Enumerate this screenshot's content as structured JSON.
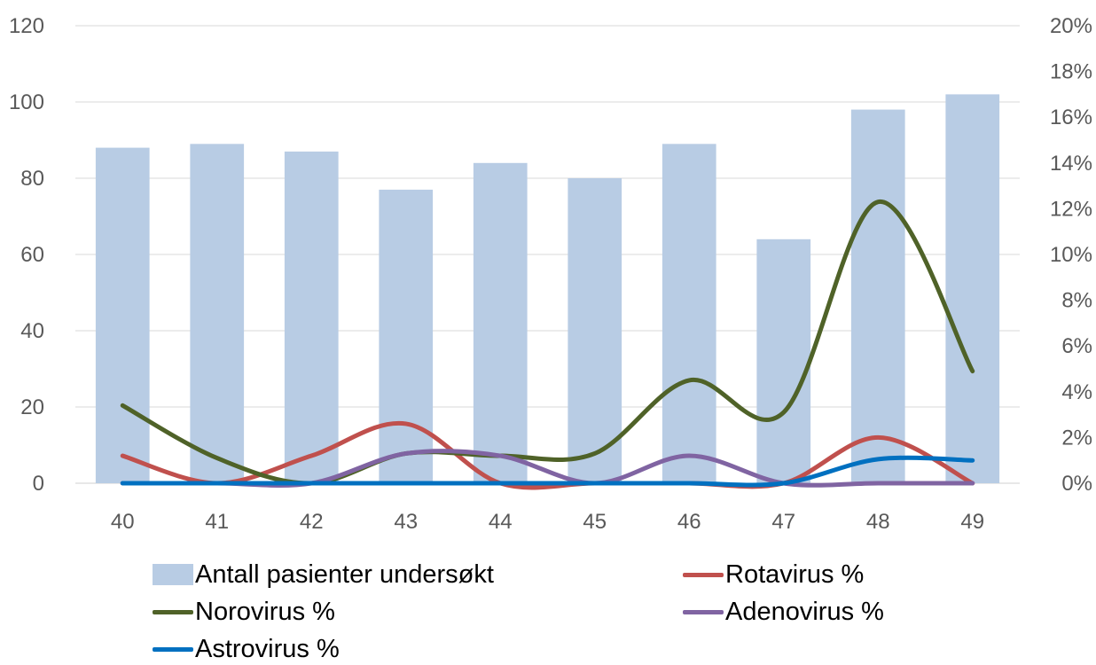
{
  "chart_data": {
    "type": "bar",
    "categories": [
      "40",
      "41",
      "42",
      "43",
      "44",
      "45",
      "46",
      "47",
      "48",
      "49"
    ],
    "y_left": {
      "ticks": [
        "0",
        "20",
        "40",
        "60",
        "80",
        "100",
        "120"
      ],
      "ylim": [
        0,
        120
      ]
    },
    "y_right": {
      "ticks": [
        "0%",
        "2%",
        "4%",
        "6%",
        "8%",
        "10%",
        "12%",
        "14%",
        "16%",
        "18%",
        "20%"
      ],
      "ylim": [
        0,
        20
      ]
    },
    "grid": true,
    "legend_position": "bottom",
    "series": [
      {
        "name": "Antall pasienter undersøkt",
        "type": "bar",
        "axis": "left",
        "color": "#b8cce4",
        "values": [
          88,
          89,
          87,
          77,
          84,
          80,
          89,
          64,
          98,
          102
        ]
      },
      {
        "name": "Rotavirus %",
        "type": "line",
        "axis": "right",
        "color": "#c0504d",
        "values": [
          1.2,
          0,
          1.2,
          2.6,
          0,
          0,
          0,
          0,
          2.0,
          0
        ]
      },
      {
        "name": "Norovirus %",
        "type": "line",
        "axis": "right",
        "color": "#4f6228",
        "values": [
          3.4,
          1.1,
          0,
          1.3,
          1.2,
          1.3,
          4.5,
          3.1,
          12.3,
          4.9
        ]
      },
      {
        "name": "Adenovirus %",
        "type": "line",
        "axis": "right",
        "color": "#8064a2",
        "values": [
          0,
          0,
          0,
          1.3,
          1.2,
          0,
          1.2,
          0,
          0,
          0
        ]
      },
      {
        "name": "Astrovirus %",
        "type": "line",
        "axis": "right",
        "color": "#0070c0",
        "values": [
          0,
          0,
          0,
          0,
          0,
          0,
          0,
          0,
          1.05,
          1.0
        ]
      }
    ]
  },
  "legend": {
    "items": [
      {
        "label": "Antall pasienter undersøkt",
        "color": "#b8cce4",
        "kind": "bar"
      },
      {
        "label": "Rotavirus %",
        "color": "#c0504d",
        "kind": "line"
      },
      {
        "label": "Norovirus %",
        "color": "#4f6228",
        "kind": "line"
      },
      {
        "label": "Adenovirus %",
        "color": "#8064a2",
        "kind": "line"
      },
      {
        "label": "Astrovirus %",
        "color": "#0070c0",
        "kind": "line"
      }
    ]
  }
}
